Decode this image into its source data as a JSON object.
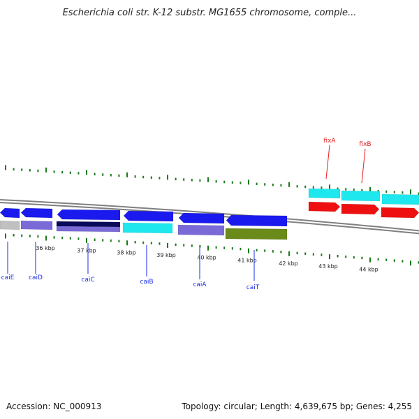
{
  "title": "Escherichia coli str. K-12 substr. MG1655 chromosome, comple...",
  "accession": "Accession: NC_000913",
  "topology": "Topology: circular; Length: 4,639,675 bp; Genes: 4,255",
  "kbp_labels": [
    "36 kbp",
    "37 kbp",
    "38 kbp",
    "39 kbp",
    "40 kbp",
    "41 kbp",
    "42 kbp",
    "43 kbp",
    "44 kbp"
  ],
  "genes_lower": [
    {
      "name": "caiE",
      "color": "#1a2ee6"
    },
    {
      "name": "caiD",
      "color": "#1a2ee6"
    },
    {
      "name": "caiC",
      "color": "#1a2ee6"
    },
    {
      "name": "caiB",
      "color": "#1a2ee6"
    },
    {
      "name": "caiA",
      "color": "#1a2ee6"
    },
    {
      "name": "caiT",
      "color": "#1a2ee6"
    }
  ],
  "genes_upper": [
    {
      "name": "fixA",
      "color": "#e81c1c"
    },
    {
      "name": "fixB",
      "color": "#e81c1c"
    }
  ],
  "colors": {
    "gene_blue": "#1a1aee",
    "cyan": "#1ee8ee",
    "red": "#ee1010",
    "lavender": "#7a6ad8",
    "navy": "#0a0a5a",
    "olive": "#6a8a1a",
    "gray": "#c0c0c0",
    "tick_green": "#1a7a1a",
    "backbone": "#808080",
    "label_blue": "#1a2ee6",
    "label_red": "#e81c1c"
  }
}
